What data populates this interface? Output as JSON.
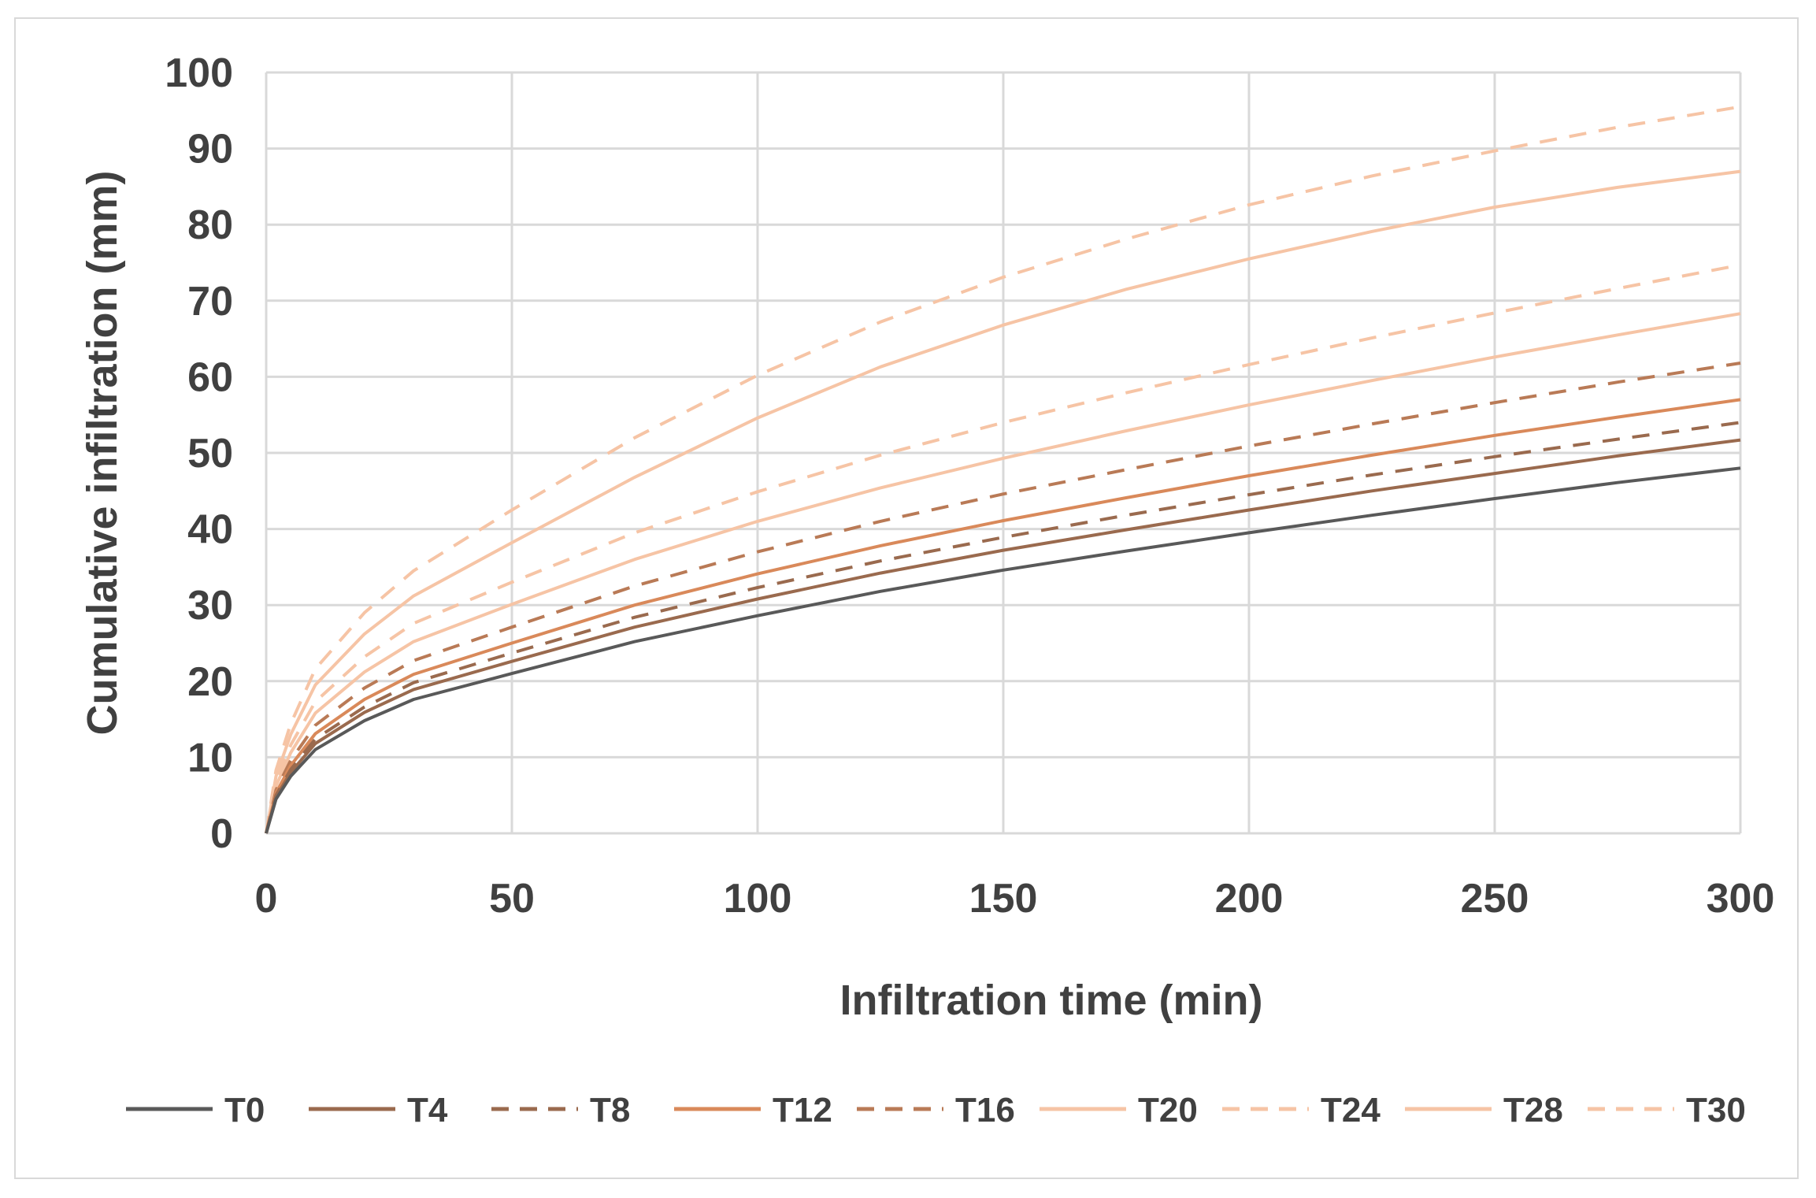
{
  "chart_data": {
    "type": "line",
    "title": "",
    "xlabel": "Infiltration time (min)",
    "ylabel": "Cumulative infiltration (mm)",
    "xlim": [
      0,
      300
    ],
    "ylim": [
      0,
      100
    ],
    "xticks": [
      "0",
      "50",
      "100",
      "150",
      "200",
      "250",
      "300"
    ],
    "yticks": [
      "0",
      "10",
      "20",
      "30",
      "40",
      "50",
      "60",
      "70",
      "80",
      "90",
      "100"
    ],
    "grid": true,
    "legend_position": "bottom",
    "x": [
      0,
      2,
      5,
      10,
      20,
      30,
      50,
      75,
      100,
      125,
      150,
      175,
      200,
      225,
      250,
      275,
      300
    ],
    "series": [
      {
        "name": "T0",
        "color": "#595959",
        "dash": "solid",
        "values": [
          0,
          4.5,
          7.5,
          11.0,
          14.8,
          17.6,
          21.0,
          25.2,
          28.6,
          31.8,
          34.6,
          37.1,
          39.5,
          41.8,
          44.0,
          46.1,
          48.0
        ]
      },
      {
        "name": "T4",
        "color": "#9a6a4e",
        "dash": "solid",
        "values": [
          0,
          4.8,
          8.0,
          11.8,
          15.9,
          18.9,
          22.6,
          27.1,
          30.8,
          34.2,
          37.2,
          39.9,
          42.5,
          45.0,
          47.3,
          49.6,
          51.7
        ]
      },
      {
        "name": "T8",
        "color": "#9a6a4e",
        "dash": "dashed",
        "values": [
          0,
          5.0,
          8.4,
          12.4,
          16.6,
          19.8,
          23.7,
          28.4,
          32.3,
          35.8,
          38.9,
          41.8,
          44.5,
          47.1,
          49.5,
          51.8,
          54.0
        ]
      },
      {
        "name": "T12",
        "color": "#d9895a",
        "dash": "solid",
        "values": [
          0,
          5.3,
          8.9,
          13.1,
          17.6,
          20.9,
          25.0,
          30.0,
          34.1,
          37.8,
          41.1,
          44.1,
          47.0,
          49.7,
          52.3,
          54.7,
          57.0
        ]
      },
      {
        "name": "T16",
        "color": "#b97a56",
        "dash": "dashed",
        "values": [
          0,
          5.7,
          9.6,
          14.2,
          19.1,
          22.7,
          27.1,
          32.5,
          37.0,
          41.0,
          44.6,
          47.8,
          50.9,
          53.8,
          56.6,
          59.3,
          61.8
        ]
      },
      {
        "name": "T20",
        "color": "#f6c4a5",
        "dash": "solid",
        "values": [
          0,
          6.2,
          10.6,
          15.8,
          21.2,
          25.2,
          30.1,
          36.0,
          41.0,
          45.4,
          49.3,
          52.9,
          56.3,
          59.5,
          62.6,
          65.5,
          68.3
        ]
      },
      {
        "name": "T24",
        "color": "#f6c4a5",
        "dash": "dashed",
        "values": [
          0,
          6.7,
          11.6,
          17.3,
          23.2,
          27.6,
          33.0,
          39.5,
          44.9,
          49.7,
          54.0,
          57.9,
          61.6,
          65.1,
          68.4,
          71.6,
          74.7
        ]
      },
      {
        "name": "T28",
        "color": "#f6c4a5",
        "dash": "solid",
        "values": [
          0,
          7.5,
          13.0,
          19.5,
          26.2,
          31.2,
          38.2,
          46.8,
          54.6,
          61.3,
          66.8,
          71.5,
          75.5,
          79.1,
          82.3,
          84.9,
          87.0
        ]
      },
      {
        "name": "T30",
        "color": "#f6c4a5",
        "dash": "dashed",
        "values": [
          0,
          8.3,
          14.4,
          21.6,
          29.0,
          34.5,
          42.5,
          52.0,
          60.2,
          67.2,
          73.1,
          78.1,
          82.6,
          86.4,
          89.7,
          92.8,
          95.5
        ]
      }
    ]
  }
}
